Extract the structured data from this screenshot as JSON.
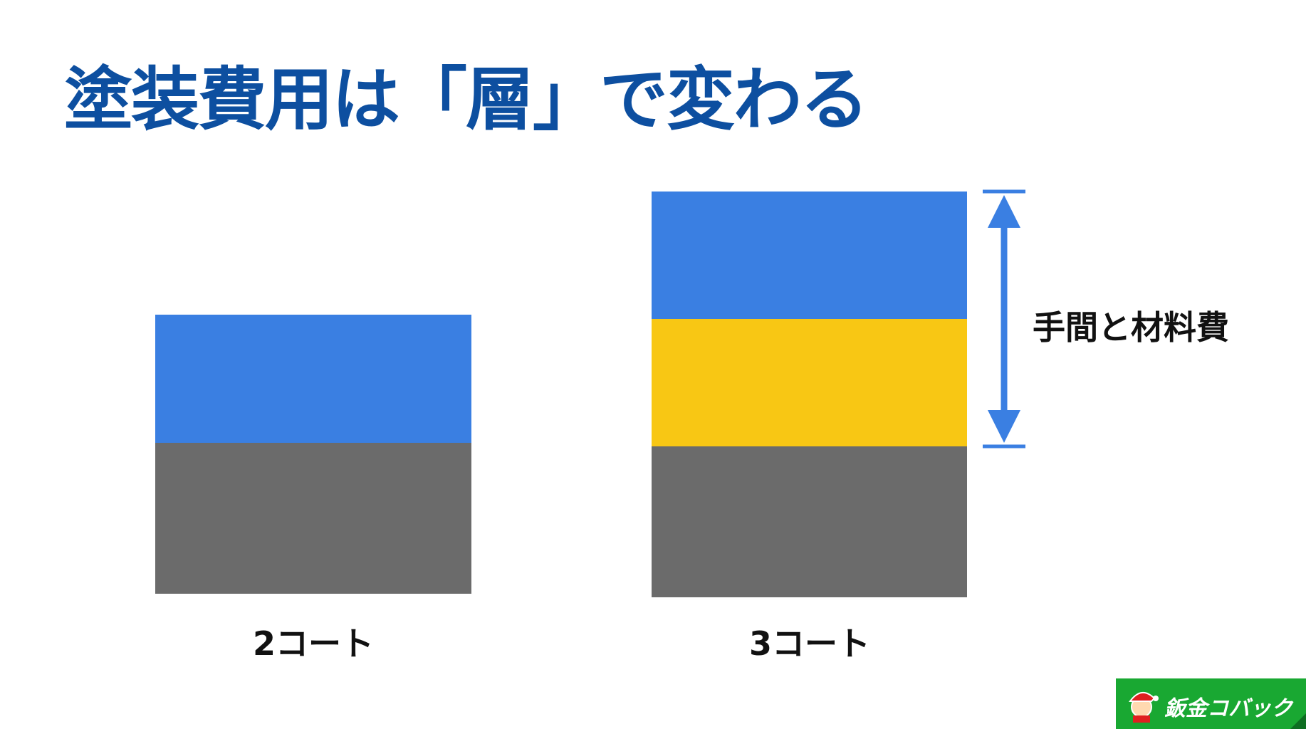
{
  "title": "塗装費用は「層」で変わる",
  "stacks": [
    {
      "label": "2コート",
      "layers": [
        "blue",
        "gray"
      ]
    },
    {
      "label": "3コート",
      "layers": [
        "blue",
        "yellow",
        "gray"
      ]
    }
  ],
  "annotation": {
    "label": "手間と材料費",
    "icon": "double-arrow-vertical"
  },
  "logo": {
    "text": "鈑金コバック"
  },
  "colors": {
    "title": "#0d4fa0",
    "blue": "#3a7fe2",
    "yellow": "#f8c714",
    "gray": "#6b6b6b",
    "arrow": "#3a7fe2",
    "logo_bg": "#19a832"
  }
}
